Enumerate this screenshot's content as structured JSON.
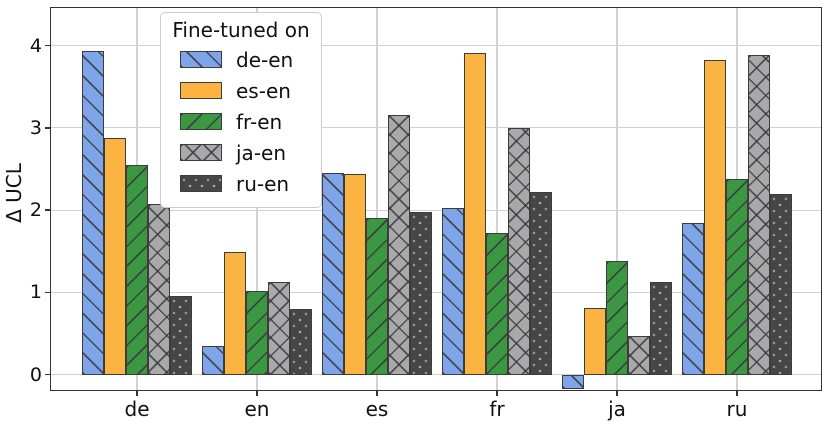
{
  "axes": {
    "ylabel": "Δ UCL",
    "spine_color": "#333333",
    "grid_color": "#d2d2d2",
    "bar_edge_color": "#3c3c3c"
  },
  "legend": {
    "title": "Fine-tuned on",
    "position": "upper left"
  },
  "chart_data": {
    "type": "bar",
    "title": "",
    "xlabel": "",
    "ylabel": "Δ UCL",
    "categories": [
      "de",
      "en",
      "es",
      "fr",
      "ja",
      "ru"
    ],
    "yticks": [
      0,
      1,
      2,
      3,
      4
    ],
    "ylim": [
      -0.2,
      4.47
    ],
    "grid": true,
    "legend_title": "Fine-tuned on",
    "legend_position": "upper left",
    "series": [
      {
        "name": "de-en",
        "color": "#7fa5e9",
        "hatch": "\\",
        "values": [
          3.93,
          0.35,
          2.45,
          2.03,
          -0.18,
          1.84
        ]
      },
      {
        "name": "es-en",
        "color": "#fbb342",
        "hatch": "",
        "values": [
          2.88,
          1.49,
          2.44,
          3.91,
          0.81,
          3.82
        ]
      },
      {
        "name": "fr-en",
        "color": "#3b9742",
        "hatch": "/",
        "values": [
          2.55,
          1.02,
          1.9,
          1.72,
          1.38,
          2.38
        ]
      },
      {
        "name": "ja-en",
        "color": "#a9a9a9",
        "hatch": "x",
        "values": [
          2.07,
          1.12,
          3.16,
          3.0,
          0.47,
          3.89
        ]
      },
      {
        "name": "ru-en",
        "color": "#464646",
        "hatch": ".",
        "values": [
          0.95,
          0.8,
          1.98,
          2.22,
          1.12,
          2.19
        ]
      }
    ]
  }
}
